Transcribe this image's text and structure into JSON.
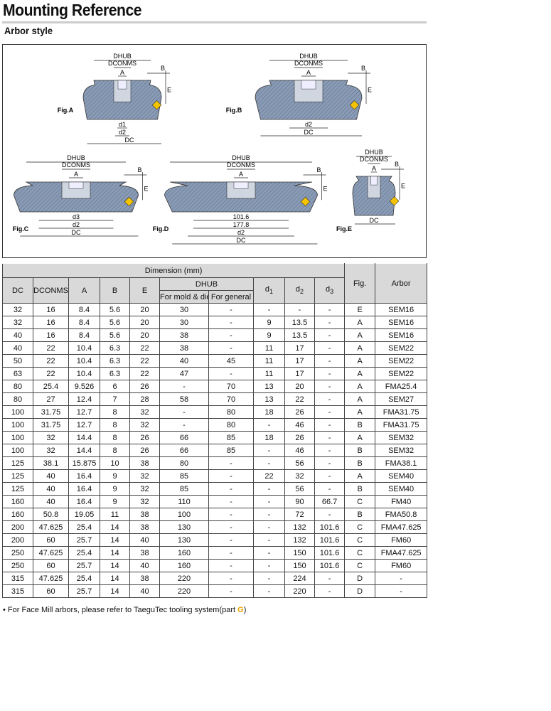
{
  "title": "Mounting Reference",
  "subtitle": "Arbor style",
  "figures": {
    "labels": {
      "dhub": "DHUB",
      "dconms": "DCONMS",
      "a": "A",
      "b": "B",
      "e": "E",
      "dc": "DC",
      "d1": "d1",
      "d2": "d2",
      "d3": "d3"
    },
    "fig_a": "Fig.A",
    "fig_b": "Fig.B",
    "fig_c": "Fig.C",
    "fig_d": "Fig.D",
    "fig_e": "Fig.E",
    "fig_d_dims": [
      "101.6",
      "177.8"
    ],
    "colors": {
      "body": "#8a9bb5",
      "insert": "#f5c400"
    }
  },
  "table": {
    "group_header": "Dimension (mm)",
    "headers": {
      "dc": "DC",
      "dconms": "DCONMS",
      "a": "A",
      "b": "B",
      "e": "E",
      "dhub": "DHUB",
      "dhub_mold": "For mold & die",
      "dhub_general": "For general",
      "d1": "d",
      "d1_sub": "1",
      "d2": "d",
      "d2_sub": "2",
      "d3": "d",
      "d3_sub": "3",
      "fig": "Fig.",
      "arbor": "Arbor"
    },
    "rows": [
      [
        "32",
        "16",
        "8.4",
        "5.6",
        "20",
        "30",
        "-",
        "-",
        "-",
        "-",
        "E",
        "SEM16"
      ],
      [
        "32",
        "16",
        "8.4",
        "5.6",
        "20",
        "30",
        "-",
        "9",
        "13.5",
        "-",
        "A",
        "SEM16"
      ],
      [
        "40",
        "16",
        "8.4",
        "5.6",
        "20",
        "38",
        "-",
        "9",
        "13.5",
        "-",
        "A",
        "SEM16"
      ],
      [
        "40",
        "22",
        "10.4",
        "6.3",
        "22",
        "38",
        "-",
        "11",
        "17",
        "-",
        "A",
        "SEM22"
      ],
      [
        "50",
        "22",
        "10.4",
        "6.3",
        "22",
        "40",
        "45",
        "11",
        "17",
        "-",
        "A",
        "SEM22"
      ],
      [
        "63",
        "22",
        "10.4",
        "6.3",
        "22",
        "47",
        "-",
        "11",
        "17",
        "-",
        "A",
        "SEM22"
      ],
      [
        "80",
        "25.4",
        "9.526",
        "6",
        "26",
        "-",
        "70",
        "13",
        "20",
        "-",
        "A",
        "FMA25.4"
      ],
      [
        "80",
        "27",
        "12.4",
        "7",
        "28",
        "58",
        "70",
        "13",
        "22",
        "-",
        "A",
        "SEM27"
      ],
      [
        "100",
        "31.75",
        "12.7",
        "8",
        "32",
        "-",
        "80",
        "18",
        "26",
        "-",
        "A",
        "FMA31.75"
      ],
      [
        "100",
        "31.75",
        "12.7",
        "8",
        "32",
        "-",
        "80",
        "-",
        "46",
        "-",
        "B",
        "FMA31.75"
      ],
      [
        "100",
        "32",
        "14.4",
        "8",
        "26",
        "66",
        "85",
        "18",
        "26",
        "-",
        "A",
        "SEM32"
      ],
      [
        "100",
        "32",
        "14.4",
        "8",
        "26",
        "66",
        "85",
        "-",
        "46",
        "-",
        "B",
        "SEM32"
      ],
      [
        "125",
        "38.1",
        "15.875",
        "10",
        "38",
        "80",
        "-",
        "-",
        "56",
        "-",
        "B",
        "FMA38.1"
      ],
      [
        "125",
        "40",
        "16.4",
        "9",
        "32",
        "85",
        "-",
        "22",
        "32",
        "-",
        "A",
        "SEM40"
      ],
      [
        "125",
        "40",
        "16.4",
        "9",
        "32",
        "85",
        "-",
        "-",
        "56",
        "-",
        "B",
        "SEM40"
      ],
      [
        "160",
        "40",
        "16.4",
        "9",
        "32",
        "110",
        "-",
        "-",
        "90",
        "66.7",
        "C",
        "FM40"
      ],
      [
        "160",
        "50.8",
        "19.05",
        "11",
        "38",
        "100",
        "-",
        "-",
        "72",
        "-",
        "B",
        "FMA50.8"
      ],
      [
        "200",
        "47.625",
        "25.4",
        "14",
        "38",
        "130",
        "-",
        "-",
        "132",
        "101.6",
        "C",
        "FMA47.625"
      ],
      [
        "200",
        "60",
        "25.7",
        "14",
        "40",
        "130",
        "-",
        "-",
        "132",
        "101.6",
        "C",
        "FM60"
      ],
      [
        "250",
        "47.625",
        "25.4",
        "14",
        "38",
        "160",
        "-",
        "-",
        "150",
        "101.6",
        "C",
        "FMA47.625"
      ],
      [
        "250",
        "60",
        "25.7",
        "14",
        "40",
        "160",
        "-",
        "-",
        "150",
        "101.6",
        "C",
        "FM60"
      ],
      [
        "315",
        "47.625",
        "25.4",
        "14",
        "38",
        "220",
        "-",
        "-",
        "224",
        "-",
        "D",
        "-"
      ],
      [
        "315",
        "60",
        "25.7",
        "14",
        "40",
        "220",
        "-",
        "-",
        "220",
        "-",
        "D",
        "-"
      ]
    ]
  },
  "note": {
    "text": "• For Face Mill arbors, please refer to TaeguTec tooling system(part ",
    "part": "G",
    "close": ")"
  }
}
